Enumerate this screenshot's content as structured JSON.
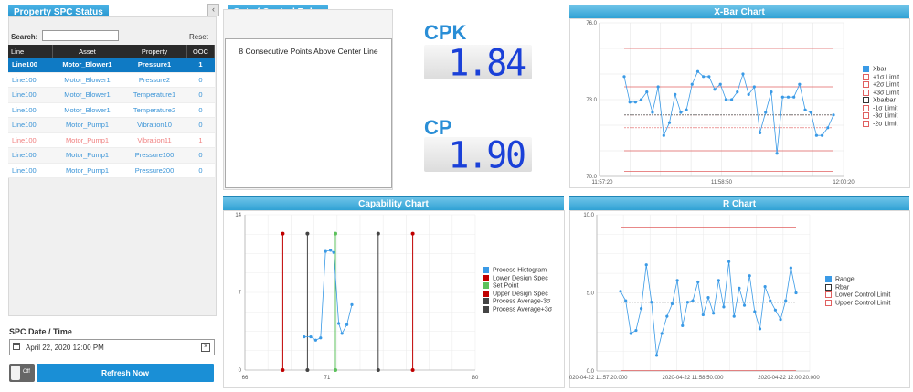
{
  "spc_status": {
    "title": "Property SPC Status",
    "search_label": "Search:",
    "search_value": "",
    "reset_label": "Reset",
    "columns": [
      "Line",
      "Asset",
      "Property",
      "OOC"
    ],
    "rows": [
      {
        "line": "Line100",
        "asset": "Motor_Blower1",
        "property": "Pressure1",
        "ooc": "1",
        "state": "selected"
      },
      {
        "line": "Line100",
        "asset": "Motor_Blower1",
        "property": "Pressure2",
        "ooc": "0",
        "state": "normal"
      },
      {
        "line": "Line100",
        "asset": "Motor_Blower1",
        "property": "Temperature1",
        "ooc": "0",
        "state": "alt"
      },
      {
        "line": "Line100",
        "asset": "Motor_Blower1",
        "property": "Temperature2",
        "ooc": "0",
        "state": "normal"
      },
      {
        "line": "Line100",
        "asset": "Motor_Pump1",
        "property": "Vibration10",
        "ooc": "0",
        "state": "alt"
      },
      {
        "line": "Line100",
        "asset": "Motor_Pump1",
        "property": "Vibration11",
        "ooc": "1",
        "state": "warn"
      },
      {
        "line": "Line100",
        "asset": "Motor_Pump1",
        "property": "Pressure100",
        "ooc": "0",
        "state": "alt"
      },
      {
        "line": "Line100",
        "asset": "Motor_Pump1",
        "property": "Pressure200",
        "ooc": "0",
        "state": "normal"
      }
    ],
    "date_label": "SPC Date / Time",
    "date_value": "April 22, 2020 12:00 PM",
    "toggle_label": "Off",
    "refresh_label": "Refresh Now"
  },
  "rules": {
    "title": "Out of Control Rules",
    "items": [
      "8 Consecutive Points Above Center Line"
    ]
  },
  "cpk": {
    "label": "CPK",
    "value": "1.84"
  },
  "cp": {
    "label": "CP",
    "value": "1.90"
  },
  "colors": {
    "accent": "#2c9fd3",
    "series": "#3a9ae6",
    "limit": "#e06060",
    "lcd": "#1a40d8"
  },
  "chart_data": [
    {
      "title": "X-Bar Chart",
      "type": "line",
      "ylim": [
        70.0,
        76.0
      ],
      "yticks": [
        "76.0",
        "73.0",
        "70.0"
      ],
      "xticks": [
        "11:57:20",
        "11:58:50",
        "12:00:20"
      ],
      "series": [
        {
          "name": "Xbar",
          "values": [
            73.9,
            72.9,
            72.9,
            73.0,
            73.3,
            72.5,
            73.5,
            71.6,
            72.1,
            73.2,
            72.5,
            72.6,
            73.6,
            74.1,
            73.9,
            73.9,
            73.4,
            73.6,
            73.0,
            73.0,
            73.3,
            74.0,
            73.2,
            73.5,
            71.7,
            72.5,
            73.3,
            70.9,
            73.1,
            73.1,
            73.1,
            73.6,
            72.6,
            72.5,
            71.6,
            71.6,
            71.9,
            72.4
          ]
        },
        {
          "name": "+1σ Limit",
          "level": 72.4
        },
        {
          "name": "+2σ Limit",
          "level": 73.5
        },
        {
          "name": "+3σ Limit",
          "level": 75.0
        },
        {
          "name": "Xbarbar",
          "level": 72.4
        },
        {
          "name": "-1σ Limit",
          "level": 71.9
        },
        {
          "name": "-3σ Limit",
          "level": 70.2
        },
        {
          "name": "-2σ Limit",
          "level": 71.0
        }
      ]
    },
    {
      "title": "Capability Chart",
      "type": "line",
      "xlim": [
        66,
        80
      ],
      "ylim": [
        0,
        14
      ],
      "yticks": [
        "14",
        "7",
        "0"
      ],
      "xticks": [
        "66",
        "71",
        "80"
      ],
      "series": [
        {
          "name": "Process Histogram",
          "points": [
            [
              69.6,
              3
            ],
            [
              70.0,
              3
            ],
            [
              70.3,
              2.7
            ],
            [
              70.6,
              2.9
            ],
            [
              70.9,
              10.7
            ],
            [
              71.2,
              10.8
            ],
            [
              71.4,
              10.6
            ],
            [
              71.7,
              4.2
            ],
            [
              71.9,
              3.3
            ],
            [
              72.2,
              4.1
            ],
            [
              72.5,
              5.9
            ]
          ]
        },
        {
          "name": "Lower Design Spec",
          "x": 68.3
        },
        {
          "name": "Set Point",
          "x": 71.5
        },
        {
          "name": "Upper Design Spec",
          "x": 76.2
        },
        {
          "name": "Process Average-3σ",
          "x": 69.8
        },
        {
          "name": "Process Average+3σ",
          "x": 74.1
        }
      ]
    },
    {
      "title": "R Chart",
      "type": "line",
      "ylim": [
        0.0,
        10.0
      ],
      "yticks": [
        "10.0",
        "5.0",
        "0.0"
      ],
      "xticks": [
        "2020-04-22 11:57:20.000",
        "2020-04-22 11:58:50.000",
        "2020-04-22 12:00:20.000"
      ],
      "series": [
        {
          "name": "Range",
          "values": [
            5.1,
            4.5,
            2.4,
            2.6,
            4.0,
            6.8,
            4.4,
            1.0,
            2.4,
            3.5,
            4.3,
            5.8,
            2.9,
            4.4,
            4.5,
            5.7,
            3.6,
            4.7,
            3.7,
            5.8,
            4.1,
            7.0,
            3.5,
            5.3,
            4.2,
            6.1,
            3.8,
            2.7,
            5.4,
            4.5,
            3.9,
            3.3,
            4.5,
            6.6,
            5.0
          ]
        },
        {
          "name": "Rbar",
          "level": 4.4
        },
        {
          "name": "Lower Control Limit",
          "level": 0.0
        },
        {
          "name": "Upper Control Limit",
          "level": 9.2
        }
      ]
    }
  ]
}
